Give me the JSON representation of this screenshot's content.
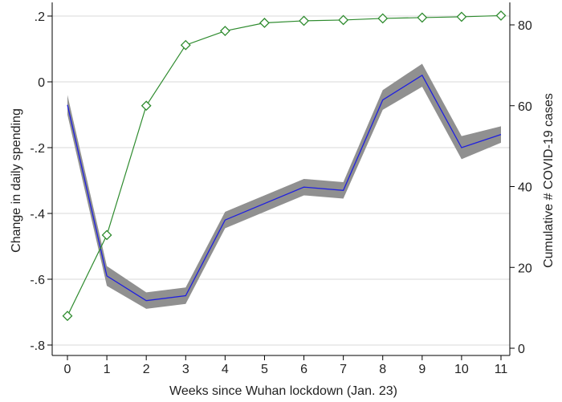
{
  "chart_data": {
    "type": "line",
    "x": [
      0,
      1,
      2,
      3,
      4,
      5,
      6,
      7,
      8,
      9,
      10,
      11
    ],
    "xlabel": "Weeks since Wuhan lockdown (Jan. 23)",
    "ylabel_left": "Change in daily spending",
    "ylabel_right": "Cumulative # COVID-19 cases",
    "ylim_left": [
      -0.8,
      0.2
    ],
    "ylim_right": [
      0,
      80
    ],
    "xticks": [
      {
        "v": 0,
        "label": "0"
      },
      {
        "v": 1,
        "label": "1"
      },
      {
        "v": 2,
        "label": "2"
      },
      {
        "v": 3,
        "label": "3"
      },
      {
        "v": 4,
        "label": "4"
      },
      {
        "v": 5,
        "label": "5"
      },
      {
        "v": 6,
        "label": "6"
      },
      {
        "v": 7,
        "label": "7"
      },
      {
        "v": 8,
        "label": "8"
      },
      {
        "v": 9,
        "label": "9"
      },
      {
        "v": 10,
        "label": "10"
      },
      {
        "v": 11,
        "label": "11"
      }
    ],
    "yticks_left": [
      {
        "v": 0.2,
        "label": ".2"
      },
      {
        "v": 0,
        "label": "0"
      },
      {
        "v": -0.2,
        "label": "-.2"
      },
      {
        "v": -0.4,
        "label": "-.4"
      },
      {
        "v": -0.6,
        "label": "-.6"
      },
      {
        "v": -0.8,
        "label": "-.8"
      }
    ],
    "yticks_right": [
      {
        "v": 0,
        "label": "0"
      },
      {
        "v": 20,
        "label": "20"
      },
      {
        "v": 40,
        "label": "40"
      },
      {
        "v": 60,
        "label": "60"
      },
      {
        "v": 80,
        "label": "80"
      }
    ],
    "grid": true,
    "series": [
      {
        "axis": "left",
        "color": "#1f1fe0",
        "band_color": "#909090",
        "values": [
          -0.07,
          -0.59,
          -0.665,
          -0.65,
          -0.42,
          -0.37,
          -0.32,
          -0.33,
          -0.055,
          0.02,
          -0.2,
          -0.16
        ],
        "lower": [
          -0.1,
          -0.62,
          -0.69,
          -0.675,
          -0.445,
          -0.395,
          -0.345,
          -0.355,
          -0.085,
          -0.015,
          -0.235,
          -0.185
        ],
        "upper": [
          -0.04,
          -0.56,
          -0.64,
          -0.625,
          -0.395,
          -0.345,
          -0.295,
          -0.305,
          -0.025,
          0.055,
          -0.165,
          -0.135
        ]
      },
      {
        "axis": "right",
        "color": "#2e8b2e",
        "marker": "diamond",
        "values": [
          8,
          28,
          60,
          75,
          78.5,
          80.5,
          81,
          81.2,
          81.6,
          81.8,
          82,
          82.3
        ]
      }
    ]
  }
}
